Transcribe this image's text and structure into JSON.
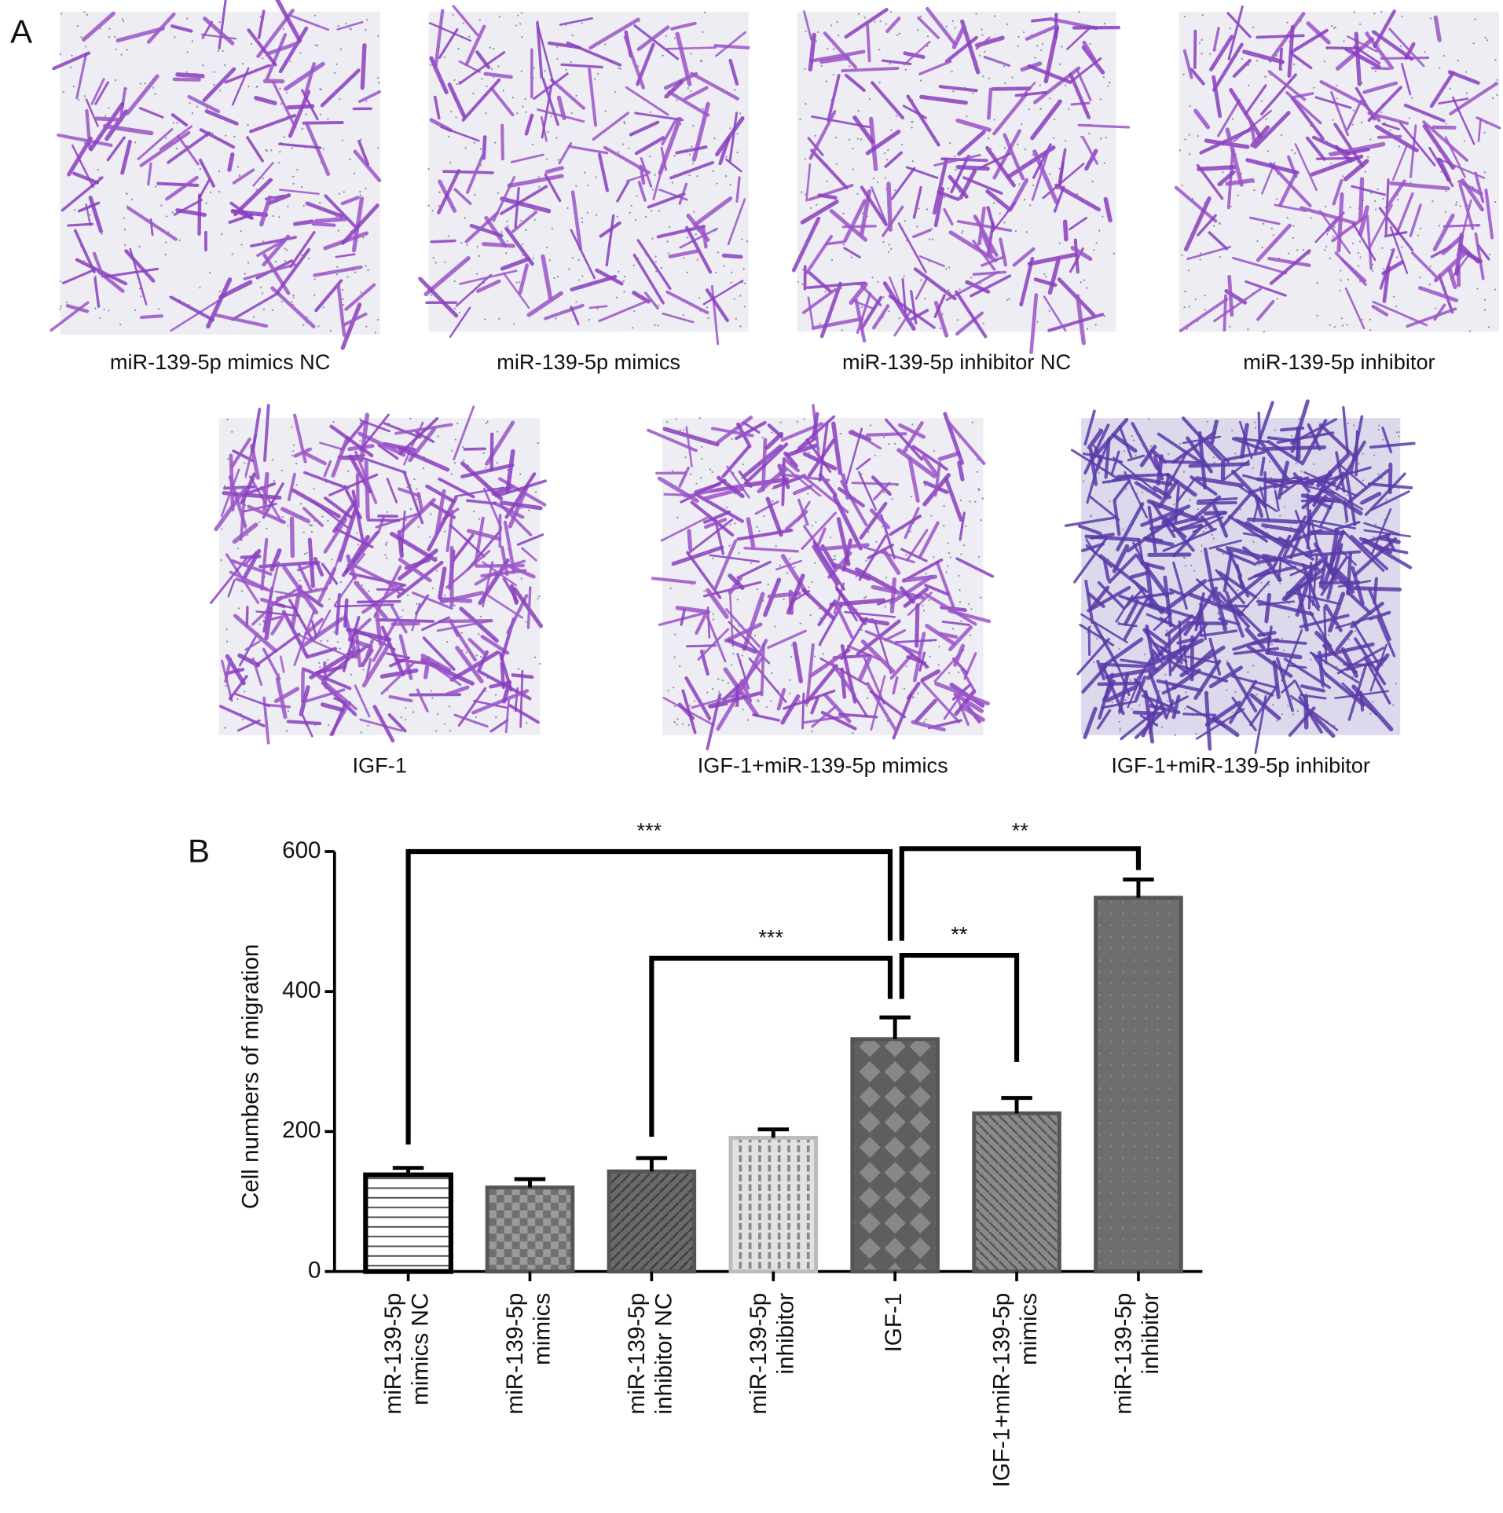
{
  "panel_a": {
    "label": "A",
    "images": [
      {
        "caption": "miR-139-5p mimics NC"
      },
      {
        "caption": "miR-139-5p mimics"
      },
      {
        "caption": "miR-139-5p inhibitor NC"
      },
      {
        "caption": "miR-139-5p inhibitor"
      },
      {
        "caption": "IGF-1"
      },
      {
        "caption": "IGF-1+miR-139-5p mimics"
      },
      {
        "caption": "IGF-1+miR-139-5p inhibitor"
      }
    ]
  },
  "chart_data": {
    "type": "bar",
    "panel_label": "B",
    "y_label": "Cell numbers of migration",
    "categories": [
      [
        "miR-139-5p",
        "mimics NC"
      ],
      [
        "miR-139-5p",
        "mimics"
      ],
      [
        "miR-139-5p",
        "inhibitor NC"
      ],
      [
        "miR-139-5p",
        "inhibitor"
      ],
      [
        "IGF-1"
      ],
      [
        "IGF-1+miR-139-5p",
        "mimics"
      ],
      [
        "miR-139-5p",
        "inhibitor"
      ]
    ],
    "values": [
      138,
      120,
      143,
      191,
      332,
      226,
      534
    ],
    "errors": [
      10,
      12,
      19,
      12,
      31,
      22,
      26
    ],
    "ylim": [
      0,
      600
    ],
    "yticks": [
      0,
      200,
      400,
      600
    ],
    "grid": false,
    "annotations": [
      {
        "text": "***",
        "from": 0,
        "to": 4
      },
      {
        "text": "**",
        "from": 4,
        "to": 6
      },
      {
        "text": "***",
        "from": 2,
        "to": 4
      },
      {
        "text": "**",
        "from": 4,
        "to": 5
      }
    ]
  }
}
